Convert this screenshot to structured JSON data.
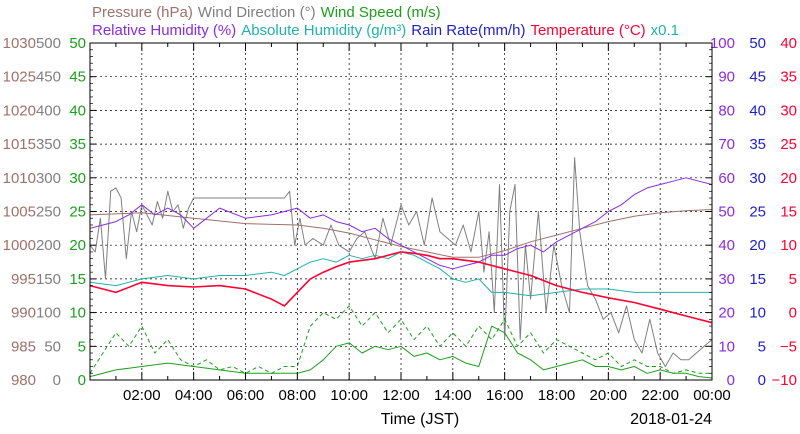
{
  "chart_data": {
    "type": "line",
    "header_row1": [
      {
        "text": "Pressure (hPa)",
        "color": "#a0706a"
      },
      {
        "text": "Wind Direction (°)",
        "color": "#808080"
      },
      {
        "text": "Wind Speed (m/s)",
        "color": "#1e9e1e"
      }
    ],
    "header_row2": [
      {
        "text": "Relative Humidity (%)",
        "color": "#8a2be2"
      },
      {
        "text": "Absolute Humidity (g/m³)",
        "color": "#20b2aa"
      },
      {
        "text": "Rain Rate(mm/h)",
        "color": "#1f1fd0"
      },
      {
        "text": "Temperature (°C)",
        "color": "#ff0033"
      },
      {
        "text": "x0.1",
        "color": "#20b2aa"
      }
    ],
    "xlabel": "Time (JST)",
    "date_label": "2018-01-24",
    "x_ticks": [
      "02:00",
      "04:00",
      "06:00",
      "08:00",
      "10:00",
      "12:00",
      "14:00",
      "16:00",
      "18:00",
      "20:00",
      "22:00",
      "00:00"
    ],
    "xlim_hours": [
      0,
      24
    ],
    "left_axes": [
      {
        "name": "pressure",
        "color": "#a0706a",
        "min": 980,
        "max": 1030,
        "labels": [
          "1030",
          "1025",
          "1020",
          "1015",
          "1010",
          "1005",
          "1000",
          "995",
          "990",
          "985",
          "980"
        ]
      },
      {
        "name": "wind_direction",
        "color": "#808080",
        "min": 0,
        "max": 500,
        "labels": [
          "500",
          "450",
          "400",
          "350",
          "300",
          "250",
          "200",
          "150",
          "100",
          "50",
          "0"
        ]
      },
      {
        "name": "wind_speed",
        "color": "#1e9e1e",
        "min": 0,
        "max": 50,
        "labels": [
          "50",
          "45",
          "40",
          "35",
          "30",
          "25",
          "20",
          "15",
          "10",
          "5",
          "0"
        ]
      }
    ],
    "right_axes": [
      {
        "name": "humidity",
        "color": "#8a2be2",
        "min": 0,
        "max": 100,
        "labels": [
          "100",
          "90",
          "80",
          "70",
          "60",
          "50",
          "40",
          "30",
          "20",
          "10",
          "0"
        ]
      },
      {
        "name": "rain_rate",
        "color": "#1f1fd0",
        "min": 0,
        "max": 50,
        "labels": [
          "50",
          "45",
          "40",
          "35",
          "30",
          "25",
          "20",
          "15",
          "10",
          "5",
          "0"
        ]
      },
      {
        "name": "temperature",
        "color": "#ff0033",
        "min": -10,
        "max": 40,
        "labels": [
          "40",
          "35",
          "30",
          "25",
          "20",
          "15",
          "10",
          "5",
          "0",
          "−5",
          "−10"
        ]
      }
    ],
    "series": [
      {
        "name": "Pressure",
        "color": "#a0706a",
        "axis": "pressure",
        "style": "solid",
        "x": [
          0,
          2,
          4,
          6,
          8,
          9,
          10,
          11,
          12,
          13,
          14,
          15,
          16,
          17,
          18,
          19,
          20,
          21,
          22,
          23,
          24
        ],
        "y": [
          1004.5,
          1004.8,
          1004.0,
          1003.2,
          1003.0,
          1002.5,
          1001.8,
          1000.8,
          999.8,
          999.0,
          998.2,
          998.2,
          999.2,
          1000.5,
          1001.5,
          1002.5,
          1003.5,
          1004.3,
          1004.8,
          1005.1,
          1005.3
        ]
      },
      {
        "name": "Wind Direction",
        "color": "#808080",
        "axis": "wind_direction",
        "style": "solid",
        "x": [
          0,
          0.2,
          0.4,
          0.6,
          0.8,
          1.0,
          1.2,
          1.4,
          1.6,
          1.8,
          2.0,
          2.2,
          2.4,
          2.6,
          2.8,
          3.0,
          3.2,
          3.4,
          3.6,
          3.8,
          4.0,
          4.5,
          5,
          5.5,
          6,
          6.5,
          7,
          7.5,
          7.7,
          7.9,
          8.1,
          8.3,
          8.6,
          9.0,
          9.3,
          9.6,
          10.0,
          10.3,
          10.6,
          11.0,
          11.3,
          11.6,
          12.0,
          12.3,
          12.6,
          12.9,
          13.2,
          13.5,
          13.8,
          14.1,
          14.4,
          14.7,
          15.0,
          15.2,
          15.4,
          15.6,
          15.8,
          16.0,
          16.2,
          16.4,
          16.6,
          16.8,
          17.0,
          17.3,
          17.6,
          17.9,
          18.2,
          18.5,
          18.7,
          18.9,
          19.2,
          19.5,
          19.8,
          20.1,
          20.4,
          20.7,
          21.0,
          21.3,
          21.6,
          21.9,
          22.2,
          22.5,
          22.8,
          23.1,
          23.4,
          23.7,
          24
        ],
        "y": [
          200,
          190,
          240,
          150,
          280,
          285,
          270,
          180,
          250,
          220,
          260,
          245,
          230,
          265,
          240,
          280,
          250,
          260,
          225,
          255,
          270,
          270,
          270,
          270,
          270,
          270,
          270,
          270,
          280,
          200,
          240,
          200,
          210,
          200,
          230,
          200,
          190,
          210,
          220,
          180,
          240,
          200,
          260,
          230,
          250,
          200,
          270,
          220,
          210,
          200,
          230,
          190,
          250,
          160,
          220,
          100,
          290,
          60,
          250,
          290,
          60,
          200,
          120,
          250,
          100,
          200,
          140,
          100,
          330,
          220,
          140,
          120,
          90,
          100,
          70,
          110,
          60,
          40,
          90,
          40,
          20,
          40,
          30,
          30,
          40,
          50,
          60
        ]
      },
      {
        "name": "Wind Speed",
        "color": "#1e9e1e",
        "axis": "wind_speed",
        "style": "solid",
        "x": [
          0,
          1,
          2,
          3,
          4,
          5,
          6,
          7,
          8,
          8.5,
          9,
          9.5,
          10,
          10.5,
          11,
          11.5,
          12,
          12.5,
          13,
          13.5,
          14,
          14.5,
          15,
          15.5,
          16,
          16.5,
          17,
          17.5,
          18,
          18.5,
          19,
          19.5,
          20,
          20.5,
          21,
          21.5,
          22,
          22.5,
          23,
          23.5,
          24
        ],
        "y": [
          0.5,
          1.5,
          2,
          2.5,
          2,
          1.5,
          1,
          1,
          1,
          1.5,
          3,
          5,
          5.5,
          4,
          5,
          4.5,
          5,
          3.5,
          4,
          3,
          3.5,
          2.5,
          2,
          8,
          7,
          4,
          3,
          1.5,
          2,
          2.5,
          3,
          2,
          2,
          1.5,
          2,
          1,
          1.5,
          1,
          1,
          0.5,
          0.3
        ]
      },
      {
        "name": "Wind Speed Gust",
        "color": "#1e9e1e",
        "axis": "wind_speed",
        "style": "dashed",
        "x": [
          0,
          0.5,
          1,
          1.5,
          2,
          2.5,
          3,
          3.5,
          4,
          4.5,
          5,
          5.5,
          6,
          6.5,
          7,
          7.5,
          8,
          8.5,
          9,
          9.5,
          10,
          10.5,
          11,
          11.5,
          12,
          12.5,
          13,
          13.5,
          14,
          14.5,
          15,
          15.5,
          16,
          16.5,
          17,
          17.5,
          18,
          18.5,
          19,
          19.5,
          20,
          20.5,
          21,
          21.5,
          22,
          22.5,
          23,
          23.5,
          24
        ],
        "y": [
          1,
          4,
          7,
          5,
          8,
          4,
          6,
          3,
          2,
          3,
          1.5,
          2,
          1,
          2,
          1,
          2,
          2,
          8,
          10,
          9,
          11,
          8,
          10,
          7,
          9,
          6,
          8,
          5,
          7,
          5,
          8,
          6,
          9,
          5,
          7,
          4,
          6,
          5,
          4,
          3,
          4,
          2,
          3,
          2,
          2,
          1,
          1.5,
          1,
          1
        ]
      },
      {
        "name": "Relative Humidity",
        "color": "#8a2be2",
        "axis": "humidity",
        "style": "solid",
        "x": [
          0,
          0.5,
          1,
          1.5,
          2,
          2.5,
          3,
          3.5,
          4,
          5,
          6,
          7,
          7.5,
          8,
          8.5,
          9,
          9.5,
          10,
          10.5,
          11,
          11.5,
          12,
          12.5,
          13,
          13.5,
          14,
          14.5,
          15,
          15.5,
          16,
          16.5,
          17,
          17.5,
          18,
          18.5,
          19,
          19.5,
          20,
          20.5,
          21,
          21.5,
          22,
          22.5,
          23,
          23.5,
          24
        ],
        "y": [
          45,
          46,
          47,
          49,
          52,
          49,
          51,
          49,
          45,
          51,
          48,
          49,
          50,
          51,
          48,
          49,
          47,
          46,
          44,
          45,
          42,
          40,
          38,
          36,
          34,
          33,
          34,
          35,
          37,
          37,
          39,
          40,
          38,
          41,
          43,
          45,
          47,
          50,
          52,
          55,
          57,
          58,
          59,
          60,
          59,
          58
        ]
      },
      {
        "name": "Absolute Humidity",
        "color": "#20b2aa",
        "axis": "humidity",
        "style": "solid",
        "x": [
          0,
          1,
          2,
          3,
          4,
          5,
          6,
          7,
          7.5,
          8,
          8.5,
          9,
          9.5,
          10,
          10.5,
          11,
          11.5,
          12,
          12.5,
          13,
          13.5,
          14,
          14.5,
          15,
          15.5,
          16,
          17,
          18,
          19,
          20,
          21,
          22,
          23,
          24
        ],
        "y": [
          29,
          28,
          30,
          31,
          30,
          31,
          31,
          32,
          31,
          33,
          35,
          36,
          35,
          37,
          36,
          37,
          36,
          38,
          37,
          35,
          33,
          30,
          29,
          30,
          26,
          26,
          25,
          26,
          27,
          27,
          26,
          26,
          26,
          26
        ]
      },
      {
        "name": "Rain Rate",
        "color": "#1f1fd0",
        "axis": "rain_rate",
        "style": "solid",
        "x": [
          0,
          24
        ],
        "y": [
          0,
          0
        ]
      },
      {
        "name": "Temperature",
        "color": "#ff0033",
        "axis": "temperature",
        "style": "solid",
        "x": [
          0,
          1,
          2,
          3,
          4,
          5,
          6,
          7,
          7.5,
          8,
          8.5,
          9,
          9.5,
          10,
          11,
          12,
          12.5,
          13,
          13.5,
          14,
          15,
          16,
          17,
          18,
          19,
          20,
          21,
          22,
          23,
          24
        ],
        "y": [
          4,
          3,
          4.5,
          4,
          3.8,
          4,
          3.5,
          2,
          1,
          3,
          5,
          6,
          6.8,
          7.5,
          8,
          9,
          8.8,
          8.5,
          8,
          8,
          7.5,
          6.5,
          5.5,
          4,
          3,
          2.2,
          1.5,
          0.5,
          -0.5,
          -1.5
        ]
      }
    ]
  }
}
